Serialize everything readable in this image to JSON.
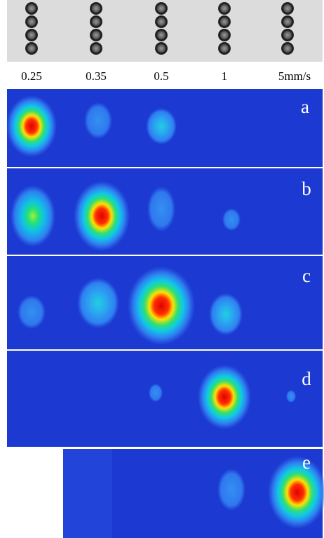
{
  "speed_labels": [
    "0.25",
    "0.35",
    "0.5",
    "1",
    "5mm/s"
  ],
  "panels": [
    {
      "label": "a"
    },
    {
      "label": "b"
    },
    {
      "label": "c"
    },
    {
      "label": "d"
    },
    {
      "label": "e"
    }
  ]
}
